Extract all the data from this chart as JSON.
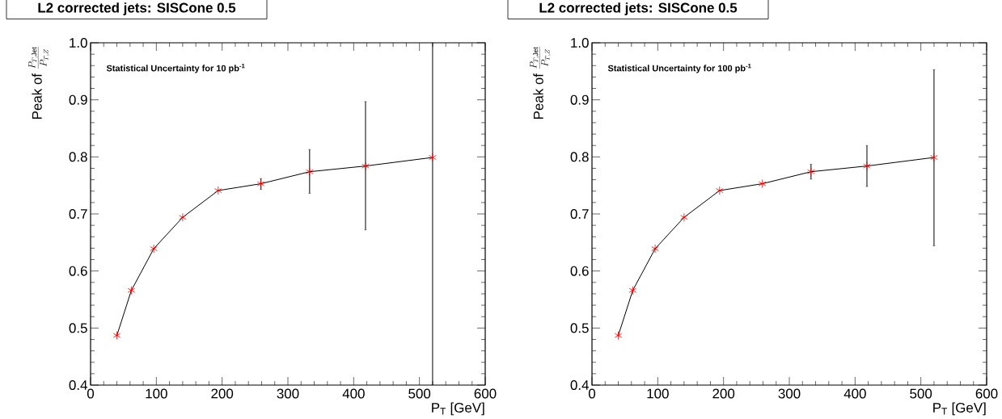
{
  "chart_data": [
    {
      "type": "line",
      "title": "L2 corrected jets: SISCone 0.5",
      "ylabel": "\\mathrm{Peak\\ of}\\ \\frac{P_{T,\\mathrm{Jet}}}{P_{T,Z}}",
      "xlabel": "P$_{T}$ [GeV]",
      "annotations": [
        "Statistical Uncertainty for 10 pb$^{-1}$"
      ],
      "x": [
        40,
        62,
        96,
        140,
        194,
        259,
        333,
        418,
        520
      ],
      "series": [
        {
          "color": "#ff0000",
          "values": [
            0.487,
            0.566,
            0.639,
            0.694,
            0.741,
            0.753,
            0.774,
            0.784,
            0.799
          ],
          "errors": [
            null,
            null,
            null,
            null,
            null,
            [
              0.743,
              0.762
            ],
            [
              0.736,
              0.813
            ],
            [
              0.672,
              0.897
            ],
            [
              0.4,
              1.0
            ]
          ]
        }
      ],
      "xlim": [
        0,
        600
      ],
      "ylim": [
        0.4,
        1.0
      ],
      "xticks": [
        0,
        100,
        200,
        300,
        400,
        500,
        600
      ],
      "yticks": [
        0.4,
        0.5,
        0.6,
        0.7,
        0.8,
        0.9,
        {
          "value": 1.0,
          "label": "1.0"
        }
      ],
      "marker": "cross",
      "line_style": "solid",
      "grid": false
    },
    {
      "type": "line",
      "title": "L2 corrected jets: SISCone 0.5",
      "ylabel": "\\mathrm{Peak\\ of}\\ \\frac{P_{T,\\mathrm{Jet}}}{P_{T,Z}}",
      "xlabel": "P$_{T}$ [GeV]",
      "annotations": [
        "Statistical Uncertainty for 100 pb$^{-1}$"
      ],
      "x": [
        40,
        62,
        96,
        140,
        194,
        259,
        333,
        418,
        520
      ],
      "series": [
        {
          "color": "#ff0000",
          "values": [
            0.487,
            0.566,
            0.639,
            0.694,
            0.741,
            0.753,
            0.774,
            0.784,
            0.799
          ],
          "errors": [
            null,
            null,
            null,
            null,
            null,
            null,
            [
              0.761,
              0.787
            ],
            [
              0.748,
              0.82
            ],
            [
              0.644,
              0.953
            ]
          ]
        }
      ],
      "xlim": [
        0,
        600
      ],
      "ylim": [
        0.4,
        1.0
      ],
      "xticks": [
        0,
        100,
        200,
        300,
        400,
        500,
        600
      ],
      "yticks": [
        0.4,
        0.5,
        0.6,
        0.7,
        0.8,
        0.9,
        {
          "value": 1.0,
          "label": "1.0"
        }
      ],
      "marker": "cross",
      "line_style": "solid",
      "grid": false
    }
  ]
}
